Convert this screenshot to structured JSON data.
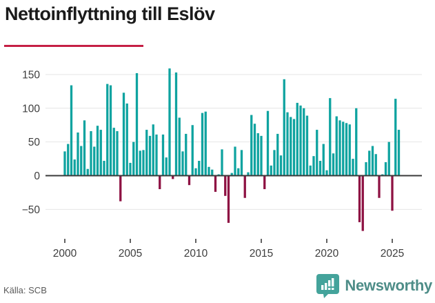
{
  "title": "Nettoinflyttning till Eslöv",
  "source": "Källa: SCB",
  "brand": {
    "name": "Newsworthy",
    "icon": "newsworthy-bubble-chart-icon"
  },
  "colors": {
    "positive_bar": "#0fa3a0",
    "negative_bar": "#8e1243",
    "grid": "#e4e4e4",
    "zero_line": "#3a3a3a",
    "tick_text": "#3d3d3d",
    "title_underline": "#c51f44",
    "brand_teal": "#44a39b"
  },
  "chart_data": {
    "type": "bar",
    "title": "Nettoinflyttning till Eslöv",
    "xlabel": "",
    "ylabel": "",
    "period": "quarterly",
    "start_year": 2000,
    "start_quarter": 1,
    "x_tick_labels": [
      "2000",
      "2005",
      "2010",
      "2015",
      "2020",
      "2025"
    ],
    "y_ticks": [
      -50,
      0,
      50,
      100,
      150
    ],
    "y_tick_labels": [
      "−50",
      "0",
      "50",
      "100",
      "150"
    ],
    "ylim": [
      -90,
      165
    ],
    "grid": true,
    "legend": false,
    "values": [
      36,
      47,
      134,
      24,
      64,
      44,
      82,
      10,
      66,
      43,
      74,
      68,
      22,
      136,
      134,
      71,
      66,
      -38,
      123,
      107,
      19,
      50,
      152,
      37,
      38,
      68,
      59,
      76,
      61,
      -20,
      61,
      27,
      159,
      -5,
      153,
      86,
      36,
      62,
      -14,
      75,
      11,
      22,
      93,
      95,
      13,
      9,
      -24,
      2,
      39,
      -30,
      -70,
      4,
      43,
      11,
      38,
      -33,
      5,
      90,
      77,
      63,
      59,
      -20,
      96,
      15,
      38,
      62,
      30,
      143,
      94,
      87,
      84,
      108,
      104,
      100,
      89,
      15,
      29,
      68,
      22,
      47,
      8,
      115,
      33,
      88,
      82,
      80,
      78,
      76,
      25,
      100,
      -69,
      -82,
      20,
      37,
      44,
      32,
      -33,
      2,
      20,
      50,
      -52,
      114,
      68
    ]
  }
}
